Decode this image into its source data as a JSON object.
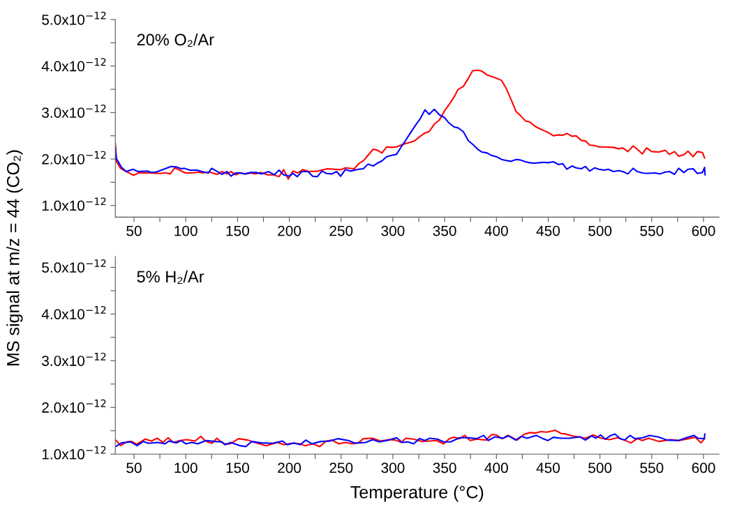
{
  "chart_data": [
    {
      "type": "line",
      "ylabel": "MS signal at m/z = 44 (CO₂)",
      "annotations": [
        "20% O₂/Ar"
      ],
      "xlim": [
        32,
        615
      ],
      "xticks": [
        50,
        {
          "value": 75,
          "label": null
        },
        100,
        {
          "value": 125,
          "label": null
        },
        150,
        {
          "value": 175,
          "label": null
        },
        200,
        {
          "value": 225,
          "label": null
        },
        250,
        {
          "value": 275,
          "label": null
        },
        300,
        {
          "value": 325,
          "label": null
        },
        350,
        {
          "value": 375,
          "label": null
        },
        400,
        {
          "value": 425,
          "label": null
        },
        450,
        {
          "value": 475,
          "label": null
        },
        500,
        {
          "value": 525,
          "label": null
        },
        550,
        {
          "value": 575,
          "label": null
        },
        600
      ],
      "ylim": [
        7.5e-13,
        5e-12
      ],
      "yticks": [
        {
          "value": 1e-12,
          "label": "1.0x10$^{−12}$"
        },
        {
          "value": 1.5e-12,
          "label": null
        },
        {
          "value": 2e-12,
          "label": "2.0x10$^{−12}$"
        },
        {
          "value": 2.5e-12,
          "label": null
        },
        {
          "value": 3e-12,
          "label": "3.0x10$^{−12}$"
        },
        {
          "value": 3.5e-12,
          "label": null
        },
        {
          "value": 4e-12,
          "label": "4.0x10$^{−12}$"
        },
        {
          "value": 4.5e-12,
          "label": null
        },
        {
          "value": 5e-12,
          "label": "5.0x10$^{−12}$"
        }
      ],
      "grid": false,
      "marker": "none",
      "line_style": "solid",
      "series": [
        {
          "color": "#ff0000",
          "x": [
            32,
            33,
            37,
            42.6,
            49.6,
            54.6,
            64,
            75,
            81,
            85,
            89.5,
            99.5,
            106,
            112.6,
            116,
            122.6,
            130.3,
            134.7,
            140,
            143.6,
            148,
            152.5,
            158,
            162.6,
            167.6,
            172.5,
            179,
            184.7,
            190,
            194.6,
            199,
            203.5,
            208,
            213,
            219,
            228,
            236.6,
            250,
            254,
            262.7,
            267,
            271.5,
            276,
            281,
            285,
            289.5,
            294,
            299,
            303.5,
            308,
            312,
            317,
            321,
            326.5,
            331,
            335,
            340,
            345,
            350,
            354,
            359,
            363,
            368,
            373,
            377,
            382,
            386,
            391,
            395,
            400,
            405,
            409,
            414,
            419,
            423,
            428,
            432,
            437,
            441,
            446,
            450,
            455,
            460,
            464,
            468,
            473,
            477,
            482,
            486,
            490,
            495,
            499,
            504,
            513,
            518,
            522,
            527,
            532,
            536,
            541,
            545,
            550,
            557,
            563,
            567,
            572,
            576,
            581,
            585,
            590,
            594,
            599,
            601
          ],
          "values": [
            2.33e-12,
            1.95e-12,
            1.8e-12,
            1.73e-12,
            1.65e-12,
            1.7e-12,
            1.7e-12,
            1.69e-12,
            1.7e-12,
            1.68e-12,
            1.81e-12,
            1.7e-12,
            1.7e-12,
            1.72e-12,
            1.7e-12,
            1.72e-12,
            1.67e-12,
            1.73e-12,
            1.68e-12,
            1.73e-12,
            1.66e-12,
            1.7e-12,
            1.68e-12,
            1.7e-12,
            1.68e-12,
            1.71e-12,
            1.66e-12,
            1.66e-12,
            1.62e-12,
            1.77e-12,
            1.57e-12,
            1.74e-12,
            1.7e-12,
            1.77e-12,
            1.73e-12,
            1.74e-12,
            1.79e-12,
            1.77e-12,
            1.81e-12,
            1.79e-12,
            1.9e-12,
            1.96e-12,
            2.08e-12,
            2.21e-12,
            2.19e-12,
            2.13e-12,
            2.26e-12,
            2.25e-12,
            2.26e-12,
            2.3e-12,
            2.33e-12,
            2.36e-12,
            2.39e-12,
            2.49e-12,
            2.56e-12,
            2.59e-12,
            2.75e-12,
            2.84e-12,
            3.04e-12,
            3.16e-12,
            3.33e-12,
            3.5e-12,
            3.56e-12,
            3.74e-12,
            3.9e-12,
            3.91e-12,
            3.89e-12,
            3.81e-12,
            3.78e-12,
            3.74e-12,
            3.69e-12,
            3.54e-12,
            3.29e-12,
            3.02e-12,
            2.94e-12,
            2.82e-12,
            2.8e-12,
            2.71e-12,
            2.66e-12,
            2.61e-12,
            2.57e-12,
            2.5e-12,
            2.52e-12,
            2.51e-12,
            2.55e-12,
            2.49e-12,
            2.5e-12,
            2.4e-12,
            2.39e-12,
            2.3e-12,
            2.29e-12,
            2.26e-12,
            2.26e-12,
            2.25e-12,
            2.22e-12,
            2.24e-12,
            2.16e-12,
            2.28e-12,
            2.21e-12,
            2.11e-12,
            2.24e-12,
            2.16e-12,
            2.15e-12,
            2.19e-12,
            2.1e-12,
            2.16e-12,
            2.06e-12,
            2.09e-12,
            2.17e-12,
            2.05e-12,
            2.16e-12,
            2.14e-12,
            2.02e-12
          ]
        },
        {
          "color": "#0000ff",
          "x": [
            32,
            33,
            38,
            42.6,
            49,
            54,
            62.7,
            67,
            71.4,
            80,
            85.7,
            91,
            95.5,
            98.7,
            104,
            111,
            117.6,
            122,
            125,
            129.7,
            135,
            140,
            143.6,
            148,
            152.5,
            157,
            162.6,
            168,
            173.5,
            180,
            185.5,
            190,
            194.6,
            200,
            203.5,
            207.7,
            212,
            218,
            222.6,
            227,
            231.5,
            236,
            241.3,
            245.7,
            249.6,
            254,
            259,
            267,
            271.5,
            276,
            281,
            285,
            289.5,
            294,
            299,
            303.5,
            308,
            312,
            317.5,
            322,
            326.5,
            331,
            335,
            340,
            345,
            350,
            354,
            359,
            363,
            368,
            373,
            377,
            382,
            386,
            391,
            395,
            400,
            405,
            409,
            414,
            419,
            423,
            428,
            432,
            437,
            441,
            446,
            450,
            455,
            460,
            464,
            468,
            473,
            477,
            482,
            486,
            490,
            495,
            499,
            504,
            508,
            513,
            518,
            522,
            527,
            532,
            536,
            541,
            545,
            553,
            558,
            563,
            567,
            572,
            576,
            581,
            585,
            590,
            594,
            599,
            601,
            601.5
          ],
          "values": [
            2.25e-12,
            2.01e-12,
            1.82e-12,
            1.73e-12,
            1.78e-12,
            1.73e-12,
            1.74e-12,
            1.71e-12,
            1.72e-12,
            1.79e-12,
            1.84e-12,
            1.83e-12,
            1.79e-12,
            1.8e-12,
            1.76e-12,
            1.76e-12,
            1.72e-12,
            1.7e-12,
            1.8e-12,
            1.74e-12,
            1.67e-12,
            1.73e-12,
            1.63e-12,
            1.7e-12,
            1.7e-12,
            1.68e-12,
            1.71e-12,
            1.71e-12,
            1.68e-12,
            1.73e-12,
            1.66e-12,
            1.76e-12,
            1.66e-12,
            1.63e-12,
            1.69e-12,
            1.62e-12,
            1.73e-12,
            1.73e-12,
            1.63e-12,
            1.62e-12,
            1.74e-12,
            1.69e-12,
            1.68e-12,
            1.73e-12,
            1.63e-12,
            1.77e-12,
            1.74e-12,
            1.78e-12,
            1.79e-12,
            1.89e-12,
            1.85e-12,
            1.91e-12,
            1.96e-12,
            2.05e-12,
            2.08e-12,
            2.1e-12,
            2.26e-12,
            2.39e-12,
            2.58e-12,
            2.73e-12,
            2.87e-12,
            3.06e-12,
            2.96e-12,
            3.07e-12,
            2.95e-12,
            2.89e-12,
            2.78e-12,
            2.69e-12,
            2.67e-12,
            2.59e-12,
            2.39e-12,
            2.32e-12,
            2.21e-12,
            2.15e-12,
            2.13e-12,
            2.08e-12,
            2.05e-12,
            1.99e-12,
            1.97e-12,
            1.95e-12,
            1.99e-12,
            1.98e-12,
            1.94e-12,
            1.92e-12,
            1.91e-12,
            1.92e-12,
            1.93e-12,
            1.92e-12,
            1.94e-12,
            1.88e-12,
            1.9e-12,
            1.78e-12,
            1.85e-12,
            1.81e-12,
            1.79e-12,
            1.84e-12,
            1.74e-12,
            1.81e-12,
            1.78e-12,
            1.76e-12,
            1.78e-12,
            1.73e-12,
            1.75e-12,
            1.73e-12,
            1.68e-12,
            1.8e-12,
            1.73e-12,
            1.7e-12,
            1.69e-12,
            1.7e-12,
            1.68e-12,
            1.72e-12,
            1.73e-12,
            1.67e-12,
            1.8e-12,
            1.71e-12,
            1.78e-12,
            1.79e-12,
            1.69e-12,
            1.71e-12,
            1.82e-12,
            1.66e-12
          ]
        }
      ]
    },
    {
      "type": "line",
      "xlabel": "Temperature (°C)",
      "annotations": [
        "5% H₂/Ar"
      ],
      "xlim": [
        32,
        615
      ],
      "xticks": [
        50,
        {
          "value": 75,
          "label": null
        },
        100,
        {
          "value": 125,
          "label": null
        },
        150,
        {
          "value": 175,
          "label": null
        },
        200,
        {
          "value": 225,
          "label": null
        },
        250,
        {
          "value": 275,
          "label": null
        },
        300,
        {
          "value": 325,
          "label": null
        },
        350,
        {
          "value": 375,
          "label": null
        },
        400,
        {
          "value": 425,
          "label": null
        },
        450,
        {
          "value": 475,
          "label": null
        },
        500,
        {
          "value": 525,
          "label": null
        },
        550,
        {
          "value": 575,
          "label": null
        },
        600
      ],
      "ylim": [
        1e-12,
        5.23e-12
      ],
      "yticks": [
        {
          "value": 1e-12,
          "label": "1.0x10$^{−12}$"
        },
        {
          "value": 1.5e-12,
          "label": null
        },
        {
          "value": 2e-12,
          "label": "2.0x10$^{−12}$"
        },
        {
          "value": 2.5e-12,
          "label": null
        },
        {
          "value": 3e-12,
          "label": "3.0x10$^{−12}$"
        },
        {
          "value": 3.5e-12,
          "label": null
        },
        {
          "value": 4e-12,
          "label": "4.0x10$^{−12}$"
        },
        {
          "value": 4.5e-12,
          "label": null
        },
        {
          "value": 5e-12,
          "label": "5.0x10$^{−12}$"
        }
      ],
      "grid": false,
      "marker": "none",
      "line_style": "solid",
      "series": [
        {
          "color": "#ff0000",
          "x": [
            33,
            37,
            42.6,
            48,
            52.4,
            61,
            67,
            72.4,
            78,
            83,
            88,
            94.6,
            101,
            109,
            114.6,
            119,
            125.5,
            130,
            136.6,
            143,
            151,
            160,
            166.6,
            177.6,
            188.6,
            195,
            202,
            210.6,
            215,
            223,
            229.5,
            235,
            241,
            248,
            254,
            261,
            267,
            271.5,
            280.5,
            288,
            296,
            302.6,
            308,
            312.5,
            320,
            328,
            335.6,
            342,
            349,
            354.5,
            359,
            364.5,
            369.5,
            374.6,
            381,
            390,
            395.6,
            400,
            405.5,
            411,
            420,
            426.5,
            432,
            437.6,
            443,
            448.6,
            457,
            462.6,
            467,
            472.6,
            479,
            486,
            493.6,
            501,
            509,
            517,
            523.5,
            530,
            536,
            541,
            547,
            557,
            568,
            576.6,
            585.5,
            592,
            597.5,
            601
          ],
          "values": [
            1.29e-12,
            1.18e-12,
            1.26e-12,
            1.27e-12,
            1.21e-12,
            1.32e-12,
            1.28e-12,
            1.34e-12,
            1.25e-12,
            1.35e-12,
            1.25e-12,
            1.29e-12,
            1.31e-12,
            1.28e-12,
            1.38e-12,
            1.28e-12,
            1.23e-12,
            1.34e-12,
            1.22e-12,
            1.22e-12,
            1.33e-12,
            1.3e-12,
            1.25e-12,
            1.18e-12,
            1.25e-12,
            1.2e-12,
            1.23e-12,
            1.22e-12,
            1.18e-12,
            1.22e-12,
            1.16e-12,
            1.27e-12,
            1.3e-12,
            1.22e-12,
            1.25e-12,
            1.22e-12,
            1.25e-12,
            1.33e-12,
            1.34e-12,
            1.28e-12,
            1.31e-12,
            1.3e-12,
            1.25e-12,
            1.34e-12,
            1.32e-12,
            1.27e-12,
            1.28e-12,
            1.29e-12,
            1.22e-12,
            1.33e-12,
            1.36e-12,
            1.33e-12,
            1.4e-12,
            1.29e-12,
            1.32e-12,
            1.3e-12,
            1.42e-12,
            1.41e-12,
            1.33e-12,
            1.4e-12,
            1.3e-12,
            1.42e-12,
            1.46e-12,
            1.45e-12,
            1.48e-12,
            1.47e-12,
            1.51e-12,
            1.44e-12,
            1.43e-12,
            1.39e-12,
            1.37e-12,
            1.34e-12,
            1.41e-12,
            1.34e-12,
            1.31e-12,
            1.35e-12,
            1.3e-12,
            1.24e-12,
            1.33e-12,
            1.29e-12,
            1.34e-12,
            1.27e-12,
            1.31e-12,
            1.29e-12,
            1.33e-12,
            1.36e-12,
            1.24e-12,
            1.33e-12
          ]
        },
        {
          "color": "#0000ff",
          "x": [
            33,
            38,
            47,
            53,
            59,
            64,
            73,
            80,
            84,
            91,
            95.5,
            100,
            106,
            111.7,
            119.6,
            128,
            135,
            138,
            143.6,
            152.5,
            158,
            163.6,
            172.4,
            183.6,
            193.5,
            198,
            204.7,
            210.5,
            216,
            221.6,
            230.4,
            239.3,
            247,
            257,
            263.7,
            267,
            273.7,
            280.5,
            287,
            296,
            303.6,
            309,
            314.7,
            320,
            325.6,
            331,
            335.6,
            343,
            349,
            355.6,
            364.5,
            373.3,
            381,
            387.6,
            392,
            398.7,
            406.4,
            412,
            418.6,
            424,
            429.7,
            438.5,
            444,
            449.6,
            455,
            462,
            470.7,
            480.6,
            486,
            491.8,
            496,
            500.6,
            505,
            510.6,
            514.5,
            519.4,
            523.8,
            529,
            533.7,
            541.5,
            547.7,
            556,
            564.7,
            575.8,
            583.5,
            590.6,
            594.6,
            600.8,
            601.2
          ],
          "values": [
            1.17e-12,
            1.24e-12,
            1.26e-12,
            1.18e-12,
            1.27e-12,
            1.23e-12,
            1.25e-12,
            1.22e-12,
            1.28e-12,
            1.24e-12,
            1.29e-12,
            1.22e-12,
            1.25e-12,
            1.22e-12,
            1.29e-12,
            1.27e-12,
            1.26e-12,
            1.2e-12,
            1.25e-12,
            1.18e-12,
            1.16e-12,
            1.27e-12,
            1.24e-12,
            1.23e-12,
            1.28e-12,
            1.2e-12,
            1.24e-12,
            1.2e-12,
            1.3e-12,
            1.22e-12,
            1.27e-12,
            1.28e-12,
            1.33e-12,
            1.29e-12,
            1.23e-12,
            1.24e-12,
            1.25e-12,
            1.31e-12,
            1.26e-12,
            1.3e-12,
            1.35e-12,
            1.25e-12,
            1.26e-12,
            1.22e-12,
            1.33e-12,
            1.29e-12,
            1.34e-12,
            1.32e-12,
            1.26e-12,
            1.26e-12,
            1.35e-12,
            1.35e-12,
            1.33e-12,
            1.4e-12,
            1.29e-12,
            1.37e-12,
            1.34e-12,
            1.39e-12,
            1.3e-12,
            1.38e-12,
            1.34e-12,
            1.4e-12,
            1.34e-12,
            1.29e-12,
            1.36e-12,
            1.34e-12,
            1.34e-12,
            1.37e-12,
            1.3e-12,
            1.39e-12,
            1.34e-12,
            1.41e-12,
            1.32e-12,
            1.4e-12,
            1.43e-12,
            1.33e-12,
            1.3e-12,
            1.4e-12,
            1.33e-12,
            1.35e-12,
            1.4e-12,
            1.37e-12,
            1.3e-12,
            1.29e-12,
            1.35e-12,
            1.4e-12,
            1.34e-12,
            1.33e-12,
            1.43e-12
          ]
        }
      ]
    }
  ]
}
